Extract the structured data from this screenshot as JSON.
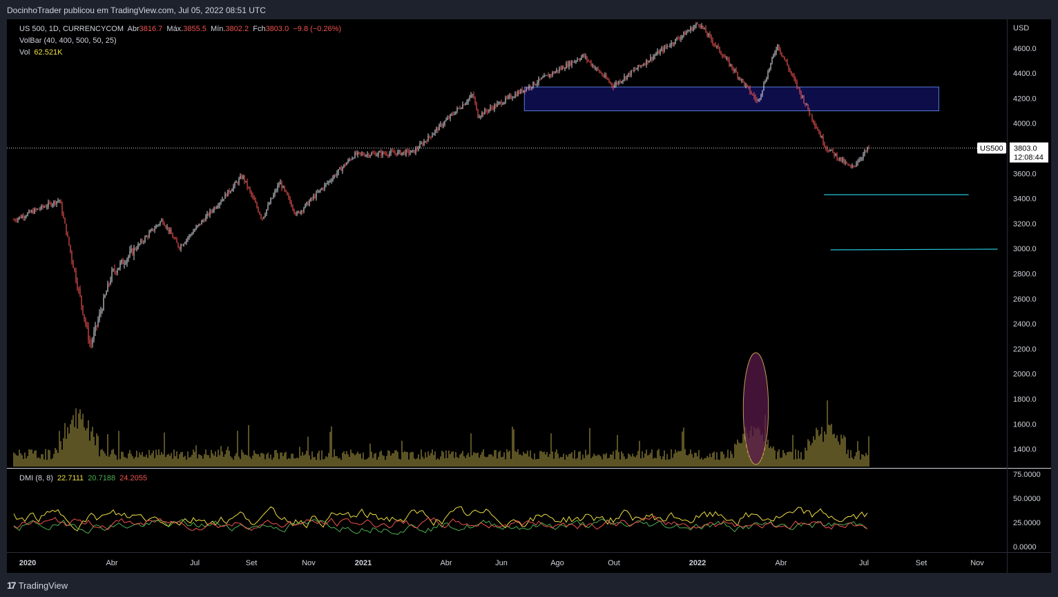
{
  "header": {
    "publisher_text": "DocinhoTrader publicou em TradingView.com, Jul 05, 2022 08:51 UTC"
  },
  "legend": {
    "symbol": "US 500, 1D, CURRENCYCOM",
    "open_label": "Abr",
    "open_value": "3816.7",
    "high_label": "Máx.",
    "high_value": "3855.5",
    "low_label": "Mín.",
    "low_value": "3802.2",
    "close_label": "Fch",
    "close_value": "3803.0",
    "change": "−9.8 (−0.26%)",
    "volbar_label": "VolBar (40, 400, 500, 50, 25)",
    "vol_label": "Vol",
    "vol_value": "62.521K",
    "dmi_label": "DMI (8, 8)",
    "dmi_adx": "22.7111",
    "dmi_plus": "20.7188",
    "dmi_minus": "24.2055"
  },
  "price_axis": {
    "currency": "USD",
    "ticks": [
      "4600.0",
      "4400.0",
      "4200.0",
      "4000.0",
      "3800.0",
      "3600.0",
      "3400.0",
      "3200.0",
      "3000.0",
      "2800.0",
      "2600.0",
      "2400.0",
      "2200.0",
      "2000.0",
      "1800.0",
      "1600.0",
      "1400.0"
    ],
    "symbol_tag": "US500",
    "last_price_tag": "3803.0",
    "countdown": "12:08:44"
  },
  "dmi_axis": {
    "ticks": [
      "75.0000",
      "50.0000",
      "25.0000",
      "0.0000"
    ]
  },
  "time_axis": {
    "labels": [
      "2020",
      "Abr",
      "Jul",
      "Set",
      "Nov",
      "2021",
      "Abr",
      "Jun",
      "Ago",
      "Out",
      "2022",
      "Abr",
      "Jul",
      "Set",
      "Nov"
    ]
  },
  "footer": {
    "brand": "TradingView",
    "logo": "17"
  },
  "colors": {
    "background": "#000000",
    "frame": "#1e222d",
    "up_candle": "#d1d4dc",
    "down_candle": "#ef5350",
    "volume": "#b8a64a",
    "zone_fill": "#0d0d4a",
    "zone_border": "#5a7bd6",
    "support_lines": "#26c6da",
    "volume_ellipse": "#5a1a4a",
    "adx": "#f0e040",
    "di_plus": "#4caf50",
    "di_minus": "#ef5350"
  },
  "chart_data": {
    "type": "candlestick",
    "symbol": "US 500",
    "interval": "1D",
    "ylim": [
      1300,
      4850
    ],
    "price_path": [
      {
        "date": "2020-01-01",
        "close": 3230
      },
      {
        "date": "2020-02-19",
        "close": 3390
      },
      {
        "date": "2020-03-23",
        "close": 2220
      },
      {
        "date": "2020-04-15",
        "close": 2800
      },
      {
        "date": "2020-06-08",
        "close": 3230
      },
      {
        "date": "2020-06-26",
        "close": 3010
      },
      {
        "date": "2020-09-02",
        "close": 3580
      },
      {
        "date": "2020-09-23",
        "close": 3240
      },
      {
        "date": "2020-10-12",
        "close": 3530
      },
      {
        "date": "2020-10-30",
        "close": 3270
      },
      {
        "date": "2020-12-31",
        "close": 3750
      },
      {
        "date": "2021-03-04",
        "close": 3770
      },
      {
        "date": "2021-05-07",
        "close": 4230
      },
      {
        "date": "2021-05-12",
        "close": 4060
      },
      {
        "date": "2021-09-02",
        "close": 4540
      },
      {
        "date": "2021-10-04",
        "close": 4300
      },
      {
        "date": "2022-01-04",
        "close": 4800
      },
      {
        "date": "2022-03-08",
        "close": 4170
      },
      {
        "date": "2022-03-29",
        "close": 4630
      },
      {
        "date": "2022-05-20",
        "close": 3810
      },
      {
        "date": "2022-06-16",
        "close": 3640
      },
      {
        "date": "2022-07-05",
        "close": 3803
      }
    ],
    "zones": [
      {
        "name": "resistance-zone",
        "low": 4100,
        "high": 4290,
        "start": "2021-07-01",
        "end": "2022-09-18"
      }
    ],
    "levels": [
      {
        "price": 3430,
        "start": "2022-05-18",
        "end": "2022-10-20"
      },
      {
        "price": 2990,
        "start": "2022-05-25",
        "end": "2022-11-20"
      }
    ],
    "volume_ylim": [
      0,
      2200
    ],
    "volume_highlight": {
      "start": "2022-02-22",
      "end": "2022-03-18"
    },
    "dmi": {
      "ylim": [
        0,
        75
      ],
      "series": [
        {
          "name": "22.7111",
          "values_end": 22.7111
        },
        {
          "name": "20.7188",
          "values_end": 20.7188
        },
        {
          "name": "24.2055",
          "values_end": 24.2055
        }
      ]
    }
  }
}
